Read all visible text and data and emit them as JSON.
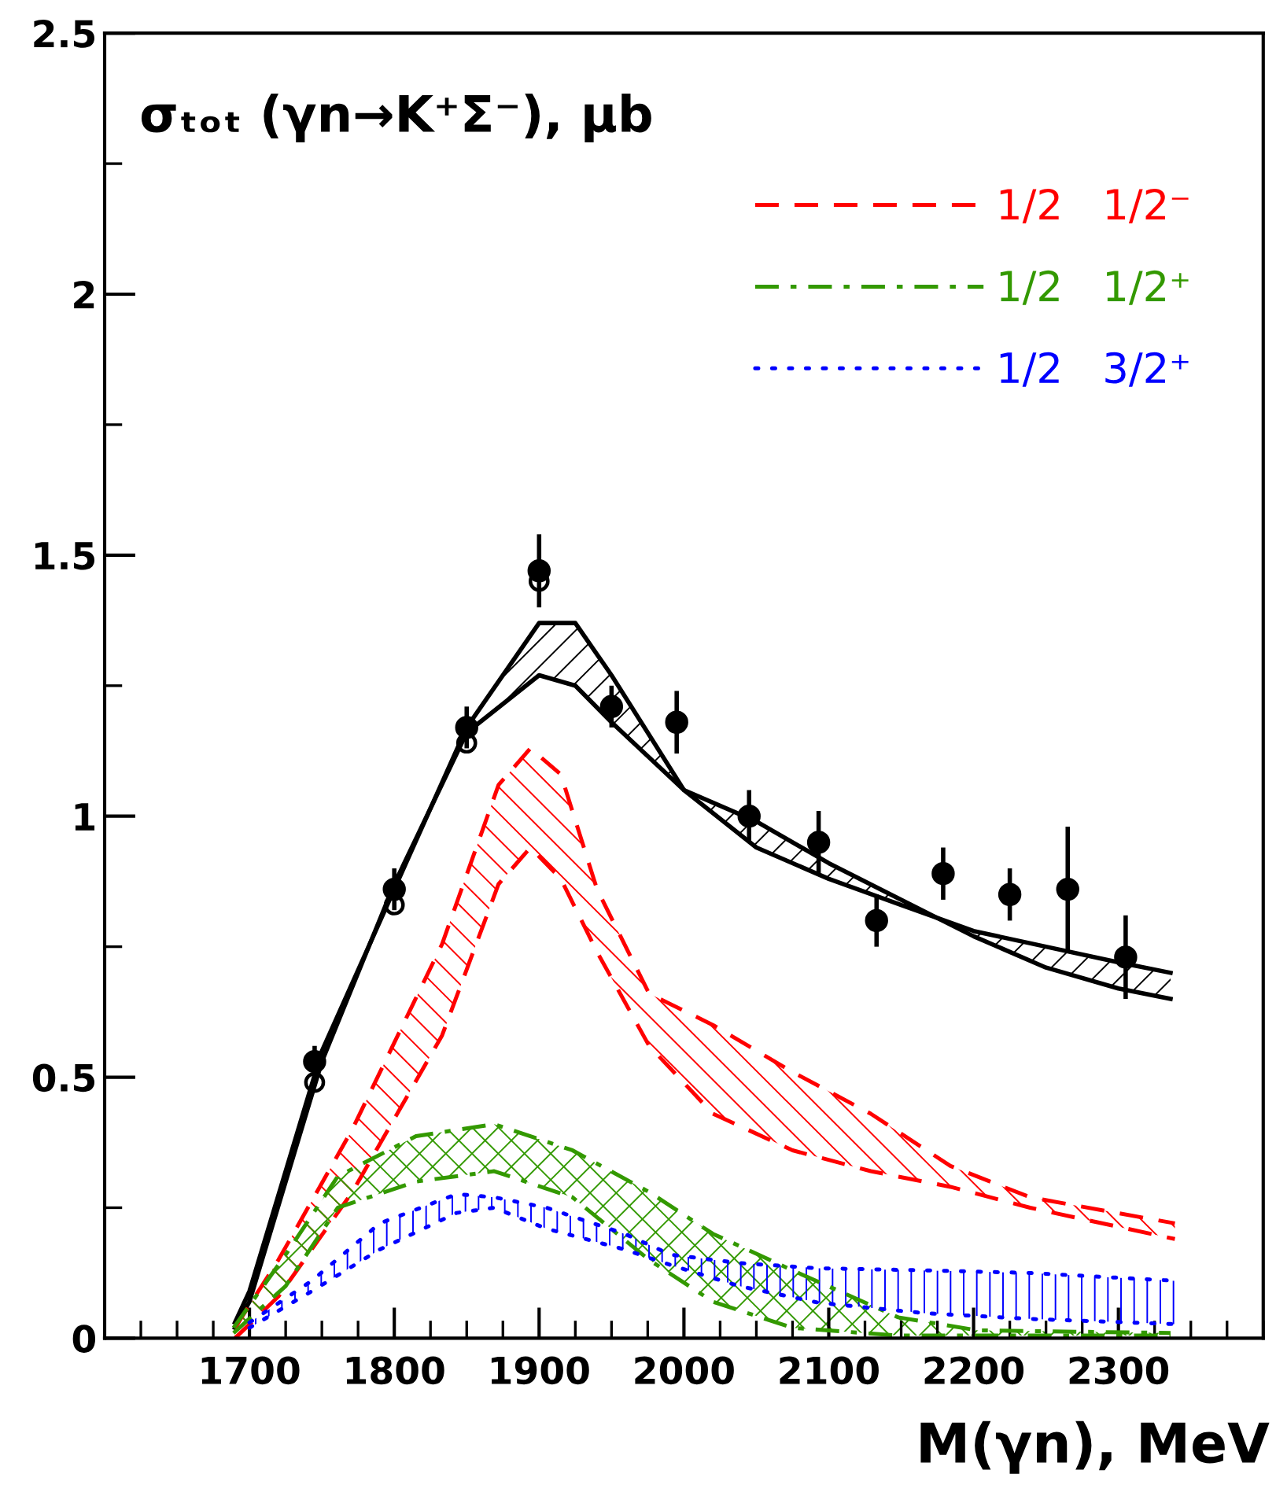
{
  "chart_data": {
    "type": "line",
    "title": "σₜₒₜ (γn→K⁺Σ⁻), μb",
    "xlabel": "M(γn), MeV",
    "xlim": [
      1600,
      2400
    ],
    "xticks": [
      1700,
      1800,
      1900,
      2000,
      2100,
      2200,
      2300
    ],
    "ylim": [
      0,
      2.5
    ],
    "yticks": [
      0,
      0.5,
      1,
      1.5,
      2,
      2.5
    ],
    "grid": false,
    "legend": "top right",
    "series": [
      {
        "color": "#000000",
        "line_style": "solid",
        "x": [
          1690,
          1700,
          1750,
          1800,
          1850,
          1900,
          1925,
          1950,
          2000,
          2050,
          2100,
          2150,
          2200,
          2250,
          2300,
          2336
        ],
        "values": [
          0.03,
          0.09,
          0.55,
          0.86,
          1.17,
          1.37,
          1.37,
          1.27,
          1.05,
          0.94,
          0.88,
          0.83,
          0.78,
          0.75,
          0.72,
          0.7
        ]
      },
      {
        "color": "#000000",
        "line_style": "solid",
        "x": [
          1690,
          1700,
          1750,
          1800,
          1850,
          1900,
          1925,
          1950,
          2000,
          2050,
          2100,
          2150,
          2200,
          2250,
          2300,
          2336
        ],
        "values": [
          0.02,
          0.07,
          0.53,
          0.87,
          1.16,
          1.27,
          1.25,
          1.18,
          1.05,
          0.99,
          0.91,
          0.84,
          0.77,
          0.71,
          0.67,
          0.65
        ]
      },
      {
        "name": "1/2   1/2⁻",
        "color": "#ff0000",
        "line_style": "dashed",
        "x": [
          1690,
          1720,
          1771,
          1833,
          1872,
          1894,
          1915,
          1940,
          1976,
          2020,
          2075,
          2129,
          2184,
          2239,
          2339
        ],
        "values": [
          0.02,
          0.15,
          0.4,
          0.755,
          1.06,
          1.13,
          1.08,
          0.86,
          0.66,
          0.6,
          0.51,
          0.43,
          0.33,
          0.27,
          0.22
        ]
      },
      {
        "color": "#ff0000",
        "line_style": "dashed",
        "x": [
          1690,
          1720,
          1771,
          1833,
          1872,
          1894,
          1915,
          1940,
          1976,
          2020,
          2075,
          2129,
          2184,
          2239,
          2339
        ],
        "values": [
          0.0,
          0.08,
          0.28,
          0.58,
          0.87,
          0.94,
          0.88,
          0.74,
          0.56,
          0.43,
          0.36,
          0.32,
          0.29,
          0.25,
          0.19
        ]
      },
      {
        "name": "1/2   1/2⁺",
        "color": "#339900",
        "line_style": "dashdot",
        "x": [
          1689,
          1725,
          1761,
          1815,
          1869,
          1923,
          1976,
          2020,
          2075,
          2148,
          2203,
          2336
        ],
        "values": [
          0.02,
          0.16,
          0.31,
          0.387,
          0.41,
          0.36,
          0.28,
          0.2,
          0.13,
          0.04,
          0.015,
          0.01
        ]
      },
      {
        "color": "#339900",
        "line_style": "dashdot",
        "x": [
          1689,
          1725,
          1761,
          1815,
          1869,
          1923,
          1976,
          2020,
          2075,
          2148,
          2203,
          2336
        ],
        "values": [
          0.01,
          0.1,
          0.25,
          0.3,
          0.32,
          0.27,
          0.15,
          0.07,
          0.02,
          0.005,
          0.005,
          0.005
        ]
      },
      {
        "name": "1/2   3/2⁺",
        "color": "#0000ff",
        "line_style": "dotted",
        "x": [
          1700,
          1743,
          1790,
          1843,
          1869,
          1905,
          1959,
          1991,
          2038,
          2093,
          2166,
          2239,
          2339
        ],
        "values": [
          0.03,
          0.11,
          0.22,
          0.276,
          0.27,
          0.25,
          0.2,
          0.16,
          0.144,
          0.134,
          0.13,
          0.125,
          0.11
        ]
      },
      {
        "color": "#0000ff",
        "line_style": "dotted",
        "x": [
          1700,
          1743,
          1790,
          1843,
          1869,
          1905,
          1959,
          1991,
          2038,
          2093,
          2166,
          2239,
          2339
        ],
        "values": [
          0.02,
          0.09,
          0.17,
          0.24,
          0.25,
          0.21,
          0.17,
          0.14,
          0.1,
          0.068,
          0.048,
          0.037,
          0.027
        ]
      },
      {
        "type": "scatter",
        "color": "#000000",
        "marker": "circle",
        "x": [
          1745,
          1800,
          1850,
          1900,
          1950,
          1995,
          2045,
          2093,
          2133,
          2179,
          2225,
          2265,
          2305
        ],
        "values": [
          0.53,
          0.86,
          1.17,
          1.47,
          1.21,
          1.18,
          1.0,
          0.95,
          0.8,
          0.89,
          0.85,
          0.86,
          0.73
        ],
        "errors": [
          0.03,
          0.04,
          0.04,
          0.07,
          0.04,
          0.06,
          0.05,
          0.06,
          0.05,
          0.05,
          0.05,
          0.12,
          0.08
        ]
      },
      {
        "type": "scatter",
        "color": "#000000",
        "marker": "circle",
        "x": [
          1745,
          1800,
          1850,
          1900
        ],
        "values": [
          0.49,
          0.83,
          1.14,
          1.45
        ]
      }
    ]
  }
}
